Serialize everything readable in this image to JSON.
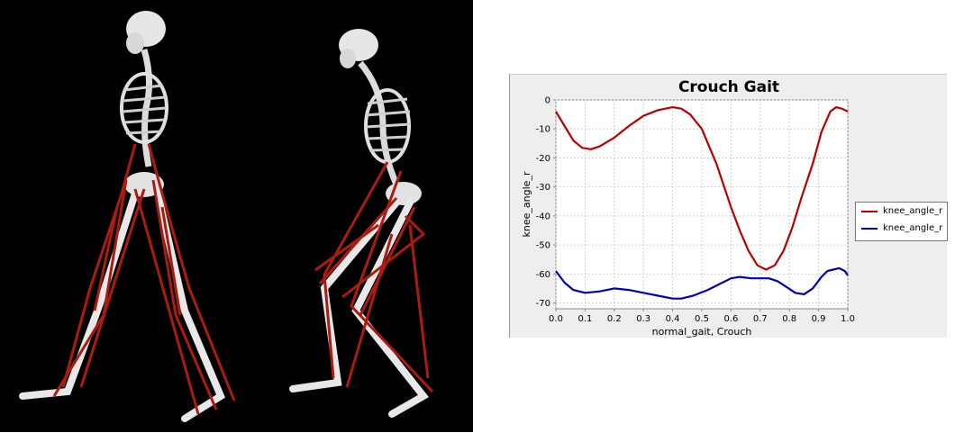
{
  "viewer": {
    "background": "#000000",
    "muscle_color": "#aa1c12",
    "bone_color": "#e6e6e6"
  },
  "chart_data": {
    "type": "line",
    "title": "Crouch Gait",
    "xlabel": "normal_gait, Crouch",
    "ylabel": "knee_angle_r",
    "xlim": [
      0.0,
      1.0
    ],
    "ylim": [
      -72,
      0
    ],
    "x_ticks": [
      "0.0",
      "0.1",
      "0.2",
      "0.3",
      "0.4",
      "0.5",
      "0.6",
      "0.7",
      "0.8",
      "0.9",
      "1.0"
    ],
    "y_ticks": [
      "0",
      "-10",
      "-20",
      "-30",
      "-40",
      "-50",
      "-60",
      "-70"
    ],
    "grid": true,
    "legend_position": "right",
    "series": [
      {
        "name": "knee_angle_r",
        "color": "#bb0000",
        "x": [
          0.0,
          0.03,
          0.06,
          0.09,
          0.12,
          0.15,
          0.2,
          0.25,
          0.3,
          0.35,
          0.4,
          0.43,
          0.46,
          0.5,
          0.55,
          0.6,
          0.63,
          0.66,
          0.69,
          0.72,
          0.75,
          0.78,
          0.81,
          0.84,
          0.88,
          0.91,
          0.94,
          0.96,
          0.98,
          1.0
        ],
        "y": [
          -4,
          -9,
          -14,
          -16.5,
          -17,
          -16,
          -13,
          -9,
          -5.5,
          -3.5,
          -2.5,
          -3,
          -5,
          -10,
          -22,
          -37,
          -45,
          -52,
          -57,
          -58.5,
          -57,
          -52,
          -44,
          -34,
          -22,
          -11,
          -4,
          -2.5,
          -3,
          -4
        ]
      },
      {
        "name": "knee_angle_r",
        "color": "#0000bb",
        "x": [
          0.0,
          0.03,
          0.06,
          0.1,
          0.15,
          0.2,
          0.25,
          0.3,
          0.35,
          0.4,
          0.43,
          0.47,
          0.52,
          0.57,
          0.6,
          0.63,
          0.67,
          0.7,
          0.73,
          0.76,
          0.79,
          0.82,
          0.85,
          0.88,
          0.91,
          0.93,
          0.95,
          0.97,
          0.99,
          1.0
        ],
        "y": [
          -59,
          -63,
          -65.5,
          -66.5,
          -66,
          -65,
          -65.5,
          -66.5,
          -67.5,
          -68.5,
          -68.5,
          -67.5,
          -65.5,
          -63,
          -61.5,
          -61,
          -61.5,
          -61.5,
          -61.5,
          -62.5,
          -64.5,
          -66.5,
          -67,
          -65,
          -61,
          -59,
          -58.5,
          -58,
          -59,
          -60.5
        ]
      }
    ]
  }
}
